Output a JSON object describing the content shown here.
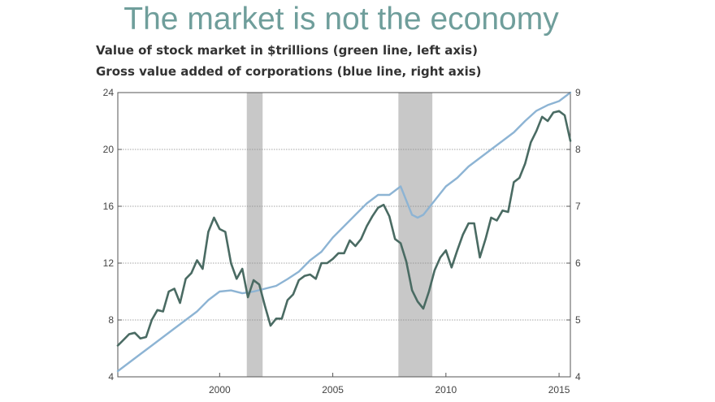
{
  "chart_data": {
    "type": "line",
    "title": "The market is not the economy",
    "subtitle_lines": [
      "Value of stock market in $trillions (green line, left axis)",
      "Gross value added of corporations (blue line, right axis)"
    ],
    "colors": {
      "green": "#4a6b63",
      "blue": "#8db4d4",
      "recession": "#c8c8c8",
      "grid": "#888888"
    },
    "xlim": [
      1995.5,
      2015.5
    ],
    "x_ticks": [
      2000,
      2005,
      2010,
      2015
    ],
    "x_tick_labels": [
      "2000",
      "2005",
      "2010",
      "2015"
    ],
    "ylim_left": [
      4,
      24
    ],
    "y_left_ticks": [
      4,
      8,
      12,
      16,
      20,
      24
    ],
    "y_left_tick_labels": [
      "4",
      "8",
      "12",
      "16",
      "20",
      "24"
    ],
    "ylim_right": [
      4,
      9
    ],
    "y_right_ticks": [
      4,
      5,
      6,
      7,
      8,
      9
    ],
    "y_right_tick_labels": [
      "4",
      "5",
      "6",
      "7",
      "8",
      "9"
    ],
    "recessions": [
      [
        2001.2,
        2001.9
      ],
      [
        2007.9,
        2009.4
      ]
    ],
    "series": [
      {
        "key": "stock_market",
        "axis": "left",
        "color": "green",
        "x": [
          1995.5,
          1995.75,
          1996.0,
          1996.25,
          1996.5,
          1996.75,
          1997.0,
          1997.25,
          1997.5,
          1997.75,
          1998.0,
          1998.25,
          1998.5,
          1998.75,
          1999.0,
          1999.25,
          1999.5,
          1999.75,
          2000.0,
          2000.25,
          2000.5,
          2000.75,
          2001.0,
          2001.25,
          2001.5,
          2001.75,
          2002.0,
          2002.25,
          2002.5,
          2002.75,
          2003.0,
          2003.25,
          2003.5,
          2003.75,
          2004.0,
          2004.25,
          2004.5,
          2004.75,
          2005.0,
          2005.25,
          2005.5,
          2005.75,
          2006.0,
          2006.25,
          2006.5,
          2006.75,
          2007.0,
          2007.25,
          2007.5,
          2007.75,
          2008.0,
          2008.25,
          2008.5,
          2008.75,
          2009.0,
          2009.25,
          2009.5,
          2009.75,
          2010.0,
          2010.25,
          2010.5,
          2010.75,
          2011.0,
          2011.25,
          2011.5,
          2011.75,
          2012.0,
          2012.25,
          2012.5,
          2012.75,
          2013.0,
          2013.25,
          2013.5,
          2013.75,
          2014.0,
          2014.25,
          2014.5,
          2014.75,
          2015.0,
          2015.25
        ],
        "values": [
          6.2,
          6.6,
          7.0,
          7.1,
          6.7,
          6.8,
          8.0,
          8.7,
          8.6,
          10.0,
          10.2,
          9.2,
          10.9,
          11.3,
          12.2,
          11.6,
          14.2,
          15.2,
          14.4,
          14.2,
          12.0,
          10.9,
          11.6,
          9.6,
          10.8,
          10.5,
          9.0,
          7.6,
          8.1,
          8.1,
          9.4,
          9.8,
          10.8,
          11.1,
          11.2,
          10.9,
          12.0,
          12.0,
          12.3,
          12.7,
          12.7,
          13.6,
          13.2,
          13.7,
          14.6,
          15.3,
          15.9,
          16.1,
          15.3,
          13.7,
          13.4,
          12.1,
          10.1,
          9.3,
          8.8,
          10.0,
          11.5,
          12.4,
          12.9,
          11.7,
          12.9,
          14.0,
          14.8,
          14.8,
          12.4,
          13.7,
          15.2,
          15.0,
          15.7,
          15.6,
          17.7,
          18.0,
          19.0,
          20.5,
          21.3,
          22.3,
          22.0,
          22.6,
          22.7,
          22.4
        ],
        "x_end": [
          2015.5
        ],
        "values_end": [
          20.6
        ]
      },
      {
        "key": "gross_value_added",
        "axis": "right",
        "color": "blue",
        "x": [
          1995.5,
          1996.0,
          1996.5,
          1997.0,
          1997.5,
          1998.0,
          1998.5,
          1999.0,
          1999.5,
          2000.0,
          2000.5,
          2001.0,
          2001.5,
          2002.0,
          2002.5,
          2003.0,
          2003.5,
          2004.0,
          2004.5,
          2005.0,
          2005.5,
          2006.0,
          2006.5,
          2007.0,
          2007.5,
          2008.0,
          2008.25,
          2008.5,
          2008.75,
          2009.0,
          2009.5,
          2010.0,
          2010.5,
          2011.0,
          2011.5,
          2012.0,
          2012.5,
          2013.0,
          2013.5,
          2014.0,
          2014.5,
          2015.0,
          2015.5
        ],
        "values": [
          4.1,
          4.25,
          4.4,
          4.55,
          4.7,
          4.85,
          5.0,
          5.15,
          5.35,
          5.5,
          5.52,
          5.47,
          5.5,
          5.55,
          5.6,
          5.72,
          5.85,
          6.05,
          6.2,
          6.45,
          6.65,
          6.85,
          7.05,
          7.2,
          7.2,
          7.35,
          7.1,
          6.85,
          6.8,
          6.85,
          7.1,
          7.35,
          7.5,
          7.7,
          7.85,
          8.0,
          8.15,
          8.3,
          8.5,
          8.68,
          8.78,
          8.85,
          9.0
        ]
      }
    ]
  }
}
